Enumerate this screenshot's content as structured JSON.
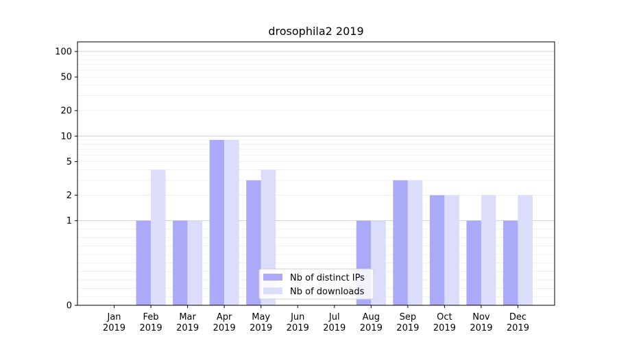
{
  "chart_data": {
    "type": "bar",
    "title": "drosophila2 2019",
    "xlabel": "",
    "ylabel": "",
    "scale": "symlog",
    "ylim": [
      0,
      130
    ],
    "yticks": [
      0,
      1,
      2,
      5,
      10,
      20,
      50,
      100
    ],
    "grid": true,
    "legend_position": "lower-center",
    "categories": [
      [
        "Jan",
        "2019"
      ],
      [
        "Feb",
        "2019"
      ],
      [
        "Mar",
        "2019"
      ],
      [
        "Apr",
        "2019"
      ],
      [
        "May",
        "2019"
      ],
      [
        "Jun",
        "2019"
      ],
      [
        "Jul",
        "2019"
      ],
      [
        "Aug",
        "2019"
      ],
      [
        "Sep",
        "2019"
      ],
      [
        "Oct",
        "2019"
      ],
      [
        "Nov",
        "2019"
      ],
      [
        "Dec",
        "2019"
      ]
    ],
    "series": [
      {
        "name": "Nb of distinct IPs",
        "color": "#aaaaf8",
        "values": [
          0,
          1,
          1,
          9,
          3,
          0,
          0,
          1,
          3,
          2,
          1,
          1
        ]
      },
      {
        "name": "Nb of downloads",
        "color": "#dcdcfb",
        "values": [
          0,
          4,
          1,
          9,
          4,
          0,
          0,
          1,
          3,
          2,
          2,
          2
        ]
      }
    ]
  }
}
